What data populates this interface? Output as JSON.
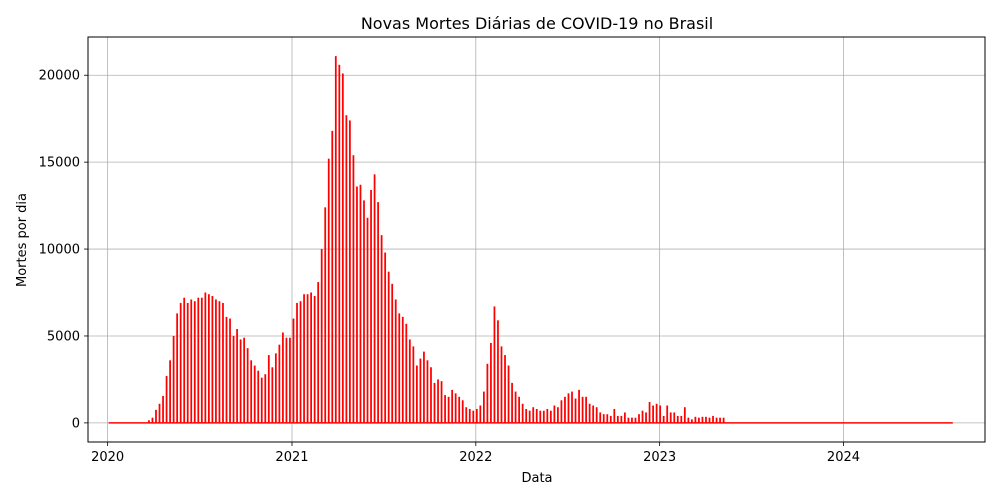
{
  "chart_data": {
    "type": "bar",
    "title": "Novas Mortes Diárias de COVID-19 no Brasil",
    "xlabel": "Data",
    "ylabel": "Mortes por dia",
    "xlim": [
      "2019-11-23",
      "2024-10-08"
    ],
    "ylim": [
      -1100,
      22200
    ],
    "x_ticks": [
      "2020",
      "2021",
      "2022",
      "2023",
      "2024"
    ],
    "y_ticks": [
      "0",
      "5000",
      "10000",
      "15000",
      "20000"
    ],
    "y_tick_values": [
      0,
      5000,
      10000,
      15000,
      20000
    ],
    "grid": true,
    "bar_color": "#ff0000",
    "interval_days": 7,
    "series": [
      {
        "start": "2020-03-23",
        "end": "2023-05-15",
        "values": [
          150,
          300,
          750,
          1100,
          1550,
          2700,
          3600,
          5000,
          6300,
          6900,
          7200,
          6900,
          7100,
          7000,
          7200,
          7200,
          7500,
          7400,
          7300,
          7100,
          7000,
          6900,
          6100,
          6000,
          5000,
          5400,
          4800,
          4900,
          4300,
          3600,
          3300,
          3000,
          2600,
          2800,
          3900,
          3200,
          4000,
          4500,
          5200,
          4900,
          4900,
          6000,
          6900,
          7000,
          7400,
          7400,
          7500,
          7300,
          8100,
          10000,
          12400,
          15200,
          16800,
          21100,
          20600,
          20100,
          17700,
          17400,
          15400,
          13600,
          13700,
          12800,
          11800,
          13400,
          14300,
          12700,
          10800,
          9800,
          8700,
          8000,
          7100,
          6300,
          6100,
          5700,
          4800,
          4400,
          3300,
          3700,
          4100,
          3600,
          3200,
          2300,
          2500,
          2400,
          1600,
          1500,
          1900,
          1700,
          1500,
          1300,
          900,
          800,
          700,
          800,
          1000,
          1800,
          3400,
          4600,
          6700,
          5900,
          4400,
          3900,
          3300,
          2300,
          1800,
          1500,
          1100,
          800,
          700,
          900,
          800,
          700,
          700,
          800,
          700,
          1000,
          900,
          1300,
          1500,
          1700,
          1800,
          1400,
          1900,
          1500,
          1500,
          1100,
          1000,
          900,
          600,
          500,
          500,
          400,
          800,
          400,
          400,
          600,
          300,
          300,
          300,
          500,
          700,
          600,
          1200,
          1000,
          1100,
          1000,
          400,
          1000,
          600,
          600,
          400,
          400,
          900,
          300,
          200,
          350,
          300,
          350,
          350,
          300,
          400,
          300,
          300,
          300
        ]
      }
    ]
  }
}
